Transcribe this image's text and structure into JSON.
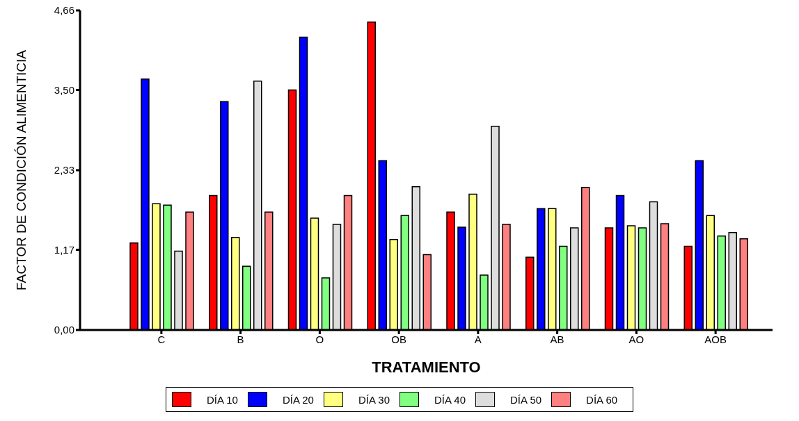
{
  "chart_data": {
    "type": "bar",
    "xlabel": "TRATAMIENTO",
    "ylabel": "FACTOR DE CONDICIÓN ALIMENTICIA",
    "categories": [
      "C",
      "B",
      "O",
      "OB",
      "A",
      "AB",
      "AO",
      "AOB"
    ],
    "series": [
      {
        "name": "DÍA 10",
        "color": "#ff0000",
        "values": [
          1.27,
          1.96,
          3.5,
          4.49,
          1.72,
          1.06,
          1.49,
          1.22
        ]
      },
      {
        "name": "DÍA 20",
        "color": "#0000ff",
        "values": [
          3.66,
          3.33,
          4.27,
          2.47,
          1.5,
          1.77,
          1.96,
          2.47
        ]
      },
      {
        "name": "DÍA 30",
        "color": "#ffff80",
        "values": [
          1.84,
          1.35,
          1.63,
          1.32,
          1.98,
          1.77,
          1.52,
          1.67
        ]
      },
      {
        "name": "DÍA 40",
        "color": "#80ff80",
        "values": [
          1.82,
          0.93,
          0.76,
          1.67,
          0.8,
          1.22,
          1.49,
          1.37
        ]
      },
      {
        "name": "DÍA 50",
        "color": "#dddddd",
        "values": [
          1.15,
          3.63,
          1.54,
          2.09,
          2.97,
          1.49,
          1.87,
          1.42
        ]
      },
      {
        "name": "DÍA 60",
        "color": "#ff8080",
        "values": [
          1.72,
          1.72,
          1.96,
          1.1,
          1.54,
          2.08,
          1.55,
          1.33
        ]
      }
    ],
    "ylim": [
      0,
      4.66
    ],
    "yticks": [
      {
        "value": 0,
        "label": "0,00"
      },
      {
        "value": 1.17,
        "label": "1,17"
      },
      {
        "value": 2.33,
        "label": "2,33"
      },
      {
        "value": 3.5,
        "label": "3,50"
      },
      {
        "value": 4.66,
        "label": "4,66"
      }
    ],
    "grid": false,
    "legend": "bottom"
  }
}
